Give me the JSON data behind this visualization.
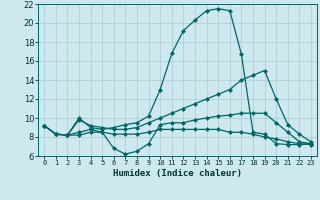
{
  "title": "",
  "xlabel": "Humidex (Indice chaleur)",
  "bg_color": "#cde8ee",
  "grid_color": "#b0cfd6",
  "line_color": "#006666",
  "xlim": [
    -0.5,
    23.5
  ],
  "ylim": [
    6,
    22
  ],
  "yticks": [
    6,
    8,
    10,
    12,
    14,
    16,
    18,
    20,
    22
  ],
  "xticks": [
    0,
    1,
    2,
    3,
    4,
    5,
    6,
    7,
    8,
    9,
    10,
    11,
    12,
    13,
    14,
    15,
    16,
    17,
    18,
    19,
    20,
    21,
    22,
    23
  ],
  "lines": [
    {
      "x": [
        0,
        1,
        2,
        3,
        4,
        5,
        6,
        7,
        8,
        9,
        10,
        11,
        12,
        13,
        14,
        15,
        16,
        17,
        18,
        19,
        20,
        21,
        22,
        23
      ],
      "y": [
        9.2,
        8.3,
        8.2,
        10.0,
        9.0,
        8.8,
        9.0,
        9.3,
        9.5,
        10.2,
        13.0,
        16.8,
        19.2,
        20.3,
        21.3,
        21.5,
        21.3,
        16.7,
        8.5,
        8.3,
        7.3,
        7.2,
        7.2,
        7.3
      ]
    },
    {
      "x": [
        0,
        1,
        2,
        3,
        4,
        5,
        6,
        7,
        8,
        9,
        10,
        11,
        12,
        13,
        14,
        15,
        16,
        17,
        18,
        19,
        20,
        21,
        22,
        23
      ],
      "y": [
        9.2,
        8.3,
        8.2,
        9.8,
        9.2,
        9.0,
        8.8,
        8.8,
        9.0,
        9.5,
        10.0,
        10.5,
        11.0,
        11.5,
        12.0,
        12.5,
        13.0,
        14.0,
        14.5,
        15.0,
        12.0,
        9.3,
        8.3,
        7.5
      ]
    },
    {
      "x": [
        0,
        1,
        2,
        3,
        4,
        5,
        6,
        7,
        8,
        9,
        10,
        11,
        12,
        13,
        14,
        15,
        16,
        17,
        18,
        19,
        20,
        21,
        22,
        23
      ],
      "y": [
        9.2,
        8.3,
        8.2,
        8.5,
        8.8,
        8.5,
        6.8,
        6.2,
        6.5,
        7.3,
        9.3,
        9.5,
        9.5,
        9.8,
        10.0,
        10.2,
        10.3,
        10.5,
        10.5,
        10.5,
        9.5,
        8.5,
        7.5,
        7.3
      ]
    },
    {
      "x": [
        0,
        1,
        2,
        3,
        4,
        5,
        6,
        7,
        8,
        9,
        10,
        11,
        12,
        13,
        14,
        15,
        16,
        17,
        18,
        19,
        20,
        21,
        22,
        23
      ],
      "y": [
        9.2,
        8.3,
        8.2,
        8.2,
        8.5,
        8.5,
        8.3,
        8.3,
        8.3,
        8.5,
        8.8,
        8.8,
        8.8,
        8.8,
        8.8,
        8.8,
        8.5,
        8.5,
        8.3,
        8.0,
        7.8,
        7.5,
        7.3,
        7.2
      ]
    }
  ]
}
